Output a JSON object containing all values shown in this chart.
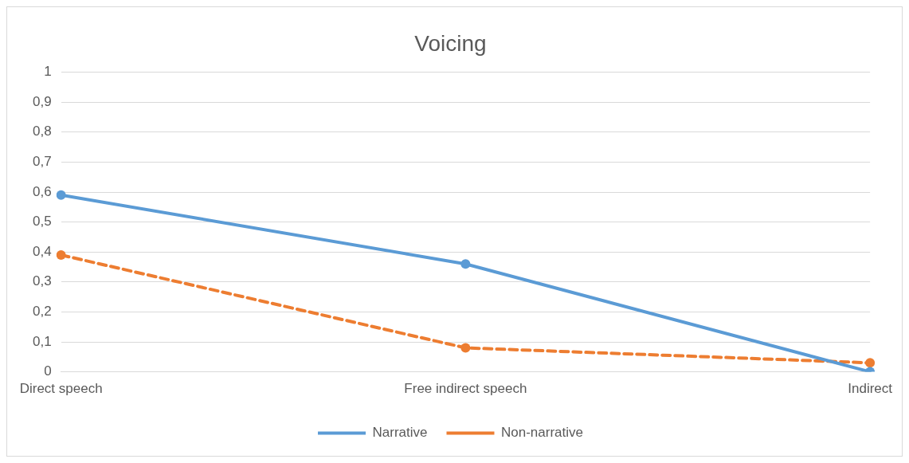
{
  "chart_data": {
    "type": "line",
    "title": "Voicing",
    "categories": [
      "Direct speech",
      "Free indirect speech",
      "Indirect"
    ],
    "series": [
      {
        "name": "Narrative",
        "color": "#5b9bd5",
        "values": [
          0.59,
          0.36,
          0
        ],
        "line_style": "solid"
      },
      {
        "name": "Non-narrative",
        "color": "#ed7d31",
        "values": [
          0.39,
          0.08,
          0.03
        ],
        "line_style": "dashed"
      }
    ],
    "ylim": [
      0,
      1
    ],
    "yticks": [
      {
        "value": 0,
        "label": "0"
      },
      {
        "value": 0.1,
        "label": "0,1"
      },
      {
        "value": 0.2,
        "label": "0,2"
      },
      {
        "value": 0.3,
        "label": "0,3"
      },
      {
        "value": 0.4,
        "label": "0,4"
      },
      {
        "value": 0.5,
        "label": "0,5"
      },
      {
        "value": 0.6,
        "label": "0,6"
      },
      {
        "value": 0.7,
        "label": "0,7"
      },
      {
        "value": 0.8,
        "label": "0,8"
      },
      {
        "value": 0.9,
        "label": "0,9"
      },
      {
        "value": 1,
        "label": "1"
      }
    ],
    "grid": "y",
    "legend": "bottom",
    "marker": "circle"
  }
}
